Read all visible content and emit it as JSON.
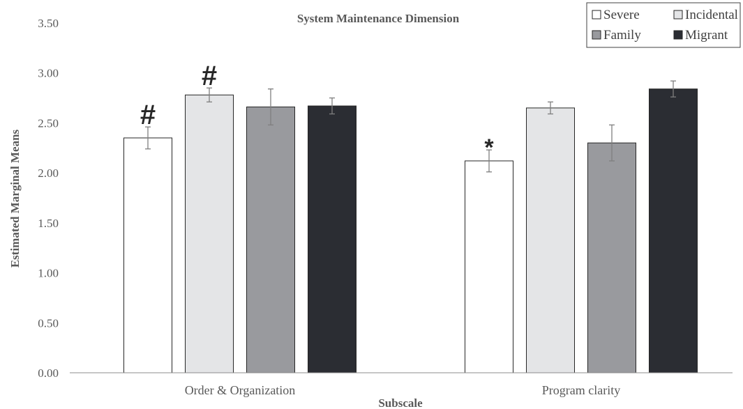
{
  "chart_data": {
    "type": "bar",
    "title": "System Maintenance Dimension",
    "xlabel": "Subscale",
    "ylabel": "Estimated Marginal Means",
    "ylim": [
      0,
      3.5
    ],
    "yticks": [
      "0.00",
      "0.50",
      "1.00",
      "1.50",
      "2.00",
      "2.50",
      "3.00",
      "3.50"
    ],
    "grid": false,
    "legend_position": "top-right",
    "categories": [
      "Order & Organization",
      "Program clarity"
    ],
    "series": [
      {
        "name": "Severe",
        "color": "#ffffff",
        "values": [
          2.35,
          2.12
        ],
        "errors": [
          0.11,
          0.11
        ]
      },
      {
        "name": "Incidental",
        "color": "#e4e5e7",
        "values": [
          2.78,
          2.65
        ],
        "errors": [
          0.07,
          0.06
        ]
      },
      {
        "name": "Family",
        "color": "#999a9e",
        "values": [
          2.66,
          2.3
        ],
        "errors": [
          0.18,
          0.18
        ]
      },
      {
        "name": "Migrant",
        "color": "#2b2d33",
        "values": [
          2.67,
          2.84
        ],
        "errors": [
          0.08,
          0.08
        ]
      }
    ],
    "annotations": [
      {
        "text": "#",
        "category": 0,
        "series": 0
      },
      {
        "text": "#",
        "category": 0,
        "series": 1
      },
      {
        "text": "*",
        "category": 1,
        "series": 0
      }
    ]
  }
}
